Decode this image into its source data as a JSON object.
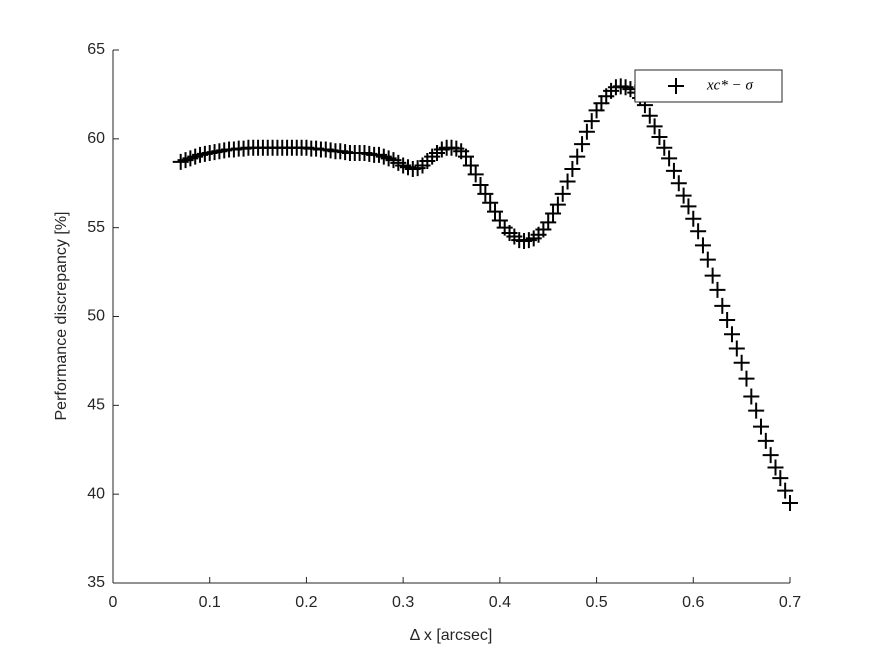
{
  "chart_data": {
    "type": "scatter",
    "marker": "+",
    "color": "#000000",
    "xlabel": "Δ x [arcsec]",
    "ylabel": "Performance discrepancy [%]",
    "xlim": [
      0,
      0.7
    ],
    "xticks": [
      0,
      0.1,
      0.2,
      0.3,
      0.4,
      0.5,
      0.6,
      0.7
    ],
    "ylim": [
      35,
      65
    ],
    "yticks": [
      35,
      40,
      45,
      50,
      55,
      60,
      65
    ],
    "legend": "upper right",
    "series": [
      {
        "name": "xc* − σ",
        "color": "#000000",
        "x": [
          0.07,
          0.075,
          0.08,
          0.085,
          0.09,
          0.095,
          0.1,
          0.105,
          0.11,
          0.115,
          0.12,
          0.125,
          0.13,
          0.135,
          0.14,
          0.145,
          0.15,
          0.155,
          0.16,
          0.165,
          0.17,
          0.175,
          0.18,
          0.185,
          0.19,
          0.195,
          0.2,
          0.205,
          0.21,
          0.215,
          0.22,
          0.225,
          0.23,
          0.235,
          0.24,
          0.245,
          0.25,
          0.255,
          0.26,
          0.265,
          0.27,
          0.275,
          0.28,
          0.285,
          0.29,
          0.295,
          0.3,
          0.305,
          0.31,
          0.315,
          0.32,
          0.325,
          0.33,
          0.335,
          0.34,
          0.345,
          0.35,
          0.355,
          0.36,
          0.365,
          0.37,
          0.375,
          0.38,
          0.385,
          0.39,
          0.395,
          0.4,
          0.405,
          0.41,
          0.415,
          0.42,
          0.425,
          0.43,
          0.435,
          0.44,
          0.445,
          0.45,
          0.455,
          0.46,
          0.465,
          0.47,
          0.475,
          0.48,
          0.485,
          0.49,
          0.495,
          0.5,
          0.505,
          0.51,
          0.515,
          0.52,
          0.525,
          0.53,
          0.535,
          0.54,
          0.545,
          0.55,
          0.555,
          0.56,
          0.565,
          0.57,
          0.575,
          0.58,
          0.585,
          0.59,
          0.595,
          0.6,
          0.605,
          0.61,
          0.615,
          0.62,
          0.625,
          0.63,
          0.635,
          0.64,
          0.645,
          0.65,
          0.655,
          0.66,
          0.665,
          0.67,
          0.675,
          0.68,
          0.685,
          0.69,
          0.695,
          0.7
        ],
        "values": [
          58.7,
          58.8,
          58.9,
          59.0,
          59.1,
          59.15,
          59.2,
          59.25,
          59.3,
          59.35,
          59.4,
          59.4,
          59.45,
          59.45,
          59.5,
          59.5,
          59.5,
          59.5,
          59.5,
          59.5,
          59.5,
          59.5,
          59.5,
          59.5,
          59.5,
          59.5,
          59.5,
          59.45,
          59.45,
          59.4,
          59.4,
          59.35,
          59.3,
          59.3,
          59.25,
          59.2,
          59.2,
          59.2,
          59.2,
          59.15,
          59.1,
          59.1,
          59.0,
          58.9,
          58.8,
          58.65,
          58.5,
          58.4,
          58.3,
          58.35,
          58.5,
          58.75,
          59.0,
          59.2,
          59.4,
          59.5,
          59.5,
          59.45,
          59.3,
          59.0,
          58.5,
          58.0,
          57.4,
          56.9,
          56.4,
          55.9,
          55.4,
          55.0,
          54.7,
          54.5,
          54.3,
          54.25,
          54.3,
          54.4,
          54.6,
          54.9,
          55.3,
          55.8,
          56.3,
          56.9,
          57.6,
          58.3,
          59.0,
          59.7,
          60.4,
          61.0,
          61.6,
          62.0,
          62.4,
          62.7,
          62.9,
          62.95,
          62.9,
          62.8,
          62.6,
          62.3,
          61.9,
          61.3,
          60.7,
          60.1,
          59.5,
          58.9,
          58.2,
          57.5,
          56.8,
          56.2,
          55.5,
          54.8,
          54.0,
          53.2,
          52.3,
          51.5,
          50.6,
          49.8,
          49.0,
          48.2,
          47.4,
          46.5,
          45.5,
          44.7,
          43.8,
          43.0,
          42.2,
          41.5,
          40.9,
          40.2,
          39.5
        ]
      }
    ]
  }
}
